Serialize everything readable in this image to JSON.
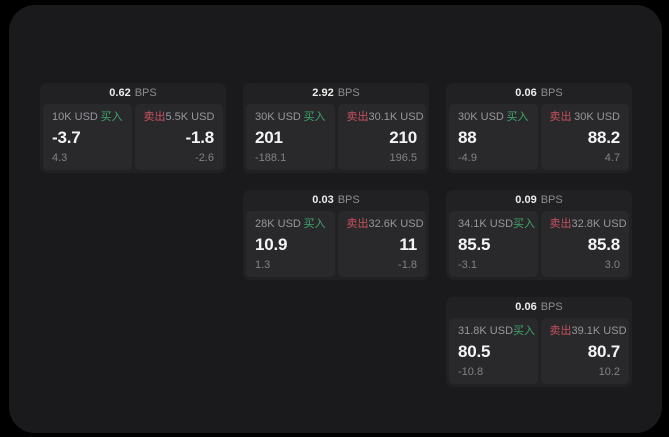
{
  "labels": {
    "bps_unit": "BPS",
    "buy": "买入",
    "sell": "卖出"
  },
  "colors": {
    "buy": "#3fa66b",
    "sell": "#c9515f",
    "background": "#000000",
    "window": "#1a1a1c",
    "card": "#212123",
    "panel": "#29292b"
  },
  "cards": [
    {
      "col": 1,
      "row": 1,
      "bps": "0.62",
      "buy": {
        "amount": "10K USD",
        "value": "-3.7",
        "delta": "4.3"
      },
      "sell": {
        "amount": "5.5K USD",
        "value": "-1.8",
        "delta": "-2.6"
      }
    },
    {
      "col": 2,
      "row": 1,
      "bps": "2.92",
      "buy": {
        "amount": "30K USD",
        "value": "201",
        "delta": "-188.1"
      },
      "sell": {
        "amount": "30.1K USD",
        "value": "210",
        "delta": "196.5"
      }
    },
    {
      "col": 3,
      "row": 1,
      "bps": "0.06",
      "buy": {
        "amount": "30K USD",
        "value": "88",
        "delta": "-4.9"
      },
      "sell": {
        "amount": "30K USD",
        "value": "88.2",
        "delta": "4.7"
      }
    },
    {
      "col": 2,
      "row": 2,
      "bps": "0.03",
      "buy": {
        "amount": "28K USD",
        "value": "10.9",
        "delta": "1.3"
      },
      "sell": {
        "amount": "32.6K USD",
        "value": "11",
        "delta": "-1.8"
      }
    },
    {
      "col": 3,
      "row": 2,
      "bps": "0.09",
      "buy": {
        "amount": "34.1K USD",
        "value": "85.5",
        "delta": "-3.1"
      },
      "sell": {
        "amount": "32.8K USD",
        "value": "85.8",
        "delta": "3.0"
      }
    },
    {
      "col": 3,
      "row": 3,
      "bps": "0.06",
      "buy": {
        "amount": "31.8K USD",
        "value": "80.5",
        "delta": "-10.8"
      },
      "sell": {
        "amount": "39.1K USD",
        "value": "80.7",
        "delta": "10.2"
      }
    }
  ]
}
